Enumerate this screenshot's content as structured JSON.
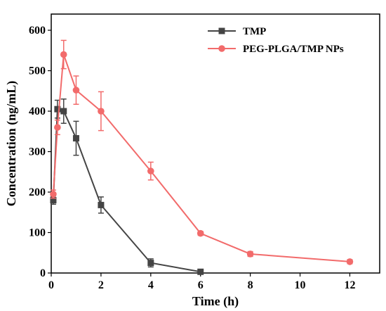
{
  "chart_data": {
    "type": "line",
    "title": "",
    "xlabel": "Time (h)",
    "ylabel": "Concentration (ng/mL)",
    "xlim": [
      0,
      13.2
    ],
    "ylim": [
      0,
      640
    ],
    "x_ticks": [
      0,
      2,
      4,
      6,
      8,
      10,
      12
    ],
    "y_ticks": [
      0,
      100,
      200,
      300,
      400,
      500,
      600
    ],
    "x_tick_labels": [
      "0",
      "2",
      "4",
      "6",
      "8",
      "10",
      "12"
    ],
    "y_tick_labels": [
      "0",
      "100",
      "200",
      "300",
      "400",
      "500",
      "600"
    ],
    "grid": false,
    "legend_position": "top-right",
    "series": [
      {
        "name": "TMP",
        "color": "#444444",
        "marker": "square",
        "x": [
          0.083,
          0.25,
          0.5,
          1,
          2,
          4,
          6
        ],
        "y": [
          180,
          405,
          400,
          333,
          168,
          25,
          3
        ],
        "err": [
          10,
          22,
          30,
          42,
          20,
          10,
          4
        ]
      },
      {
        "name": "PEG-PLGA/TMP NPs",
        "color": "#f26b6b",
        "marker": "circle",
        "x": [
          0.083,
          0.25,
          0.5,
          1,
          2,
          4,
          6,
          8,
          12
        ],
        "y": [
          195,
          360,
          540,
          452,
          400,
          252,
          98,
          47,
          28
        ],
        "err": [
          10,
          18,
          35,
          35,
          48,
          22,
          5,
          6,
          5
        ]
      }
    ]
  }
}
